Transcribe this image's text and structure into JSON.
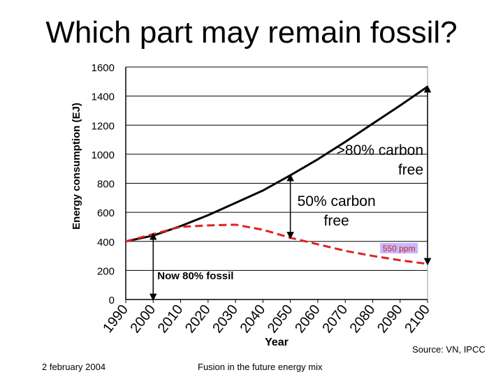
{
  "slide": {
    "title": "Which part may remain fossil?",
    "footer_left": "2 february 2004",
    "footer_center": "Fusion in the future energy mix",
    "source": "Source: VN, IPCC"
  },
  "chart_data": {
    "type": "line",
    "title": "",
    "xlabel": "Year",
    "ylabel": "Energy consumption (EJ)",
    "x": [
      1990,
      2000,
      2010,
      2020,
      2030,
      2040,
      2050,
      2060,
      2070,
      2080,
      2090,
      2100
    ],
    "x_tick_labels": [
      "1990",
      "2000",
      "2010",
      "2020",
      "2030",
      "2040",
      "2050",
      "2060",
      "2070",
      "2080",
      "2090",
      "2100"
    ],
    "ylim": [
      0,
      1600
    ],
    "y_ticks": [
      0,
      200,
      400,
      600,
      800,
      1000,
      1200,
      1400,
      1600
    ],
    "series": [
      {
        "style": "solid",
        "color": "#000000",
        "values": [
          400,
          440,
          505,
          580,
          665,
          750,
          855,
          965,
          1085,
          1210,
          1335,
          1465
        ]
      },
      {
        "style": "dashed",
        "color": "#dd2222",
        "values": [
          400,
          450,
          500,
          510,
          515,
          480,
          425,
          380,
          335,
          300,
          270,
          245
        ]
      }
    ],
    "annotations": [
      {
        "id": "fossil",
        "text": "Now 80% fossil",
        "x": 2000,
        "y_from": 0,
        "y_to": 450,
        "color": "#000000"
      },
      {
        "id": "half",
        "text_lines": [
          "50% carbon",
          "free"
        ],
        "x": 2050,
        "y_from": 425,
        "y_to": 855,
        "color": "#000000"
      },
      {
        "id": "eighty",
        "text_lines": [
          ">80% carbon",
          "free"
        ],
        "x": 2100,
        "y_from": 245,
        "y_to": 1465,
        "color": "#000000"
      },
      {
        "id": "ppm",
        "text": "550 ppm",
        "x": 2098,
        "y": 245,
        "color": "#cc2222",
        "highlight": "#c8b8ff"
      }
    ],
    "grid": {
      "horizontal": true,
      "vertical": false
    },
    "legend": "none"
  }
}
